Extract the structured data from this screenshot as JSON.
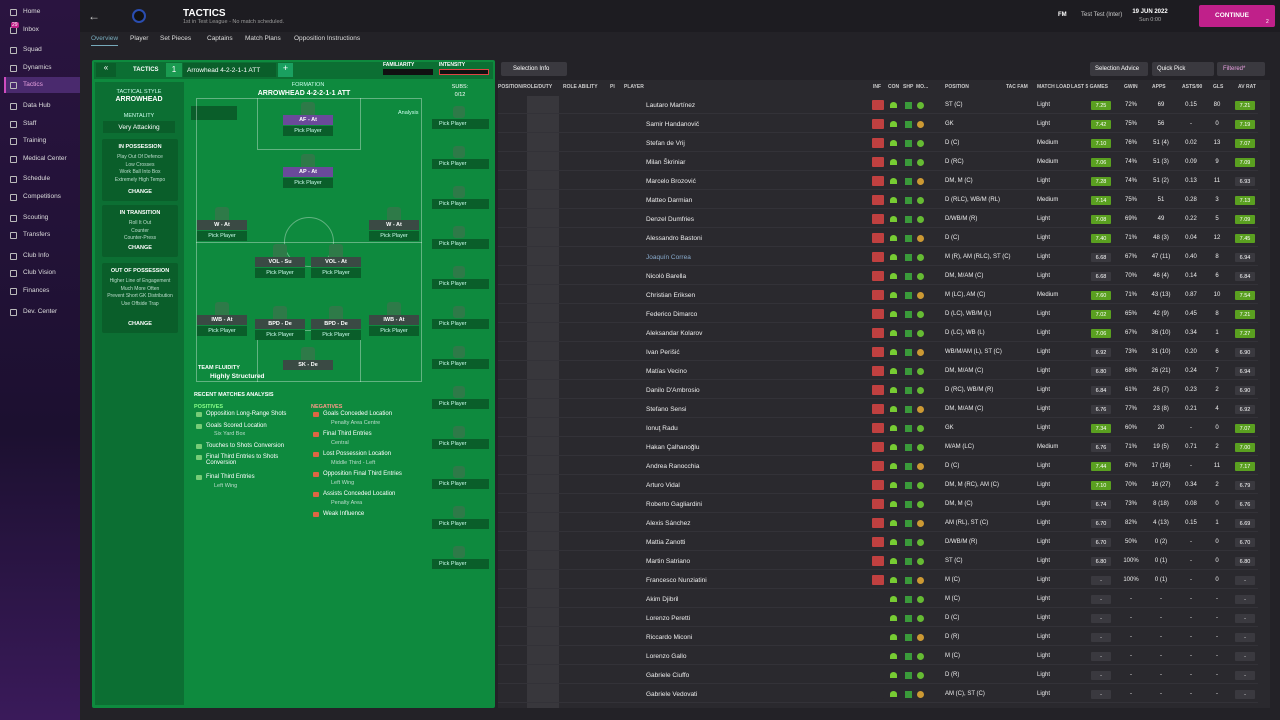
{
  "sidebar": {
    "items": [
      "Home",
      "Inbox",
      "Squad",
      "Dynamics",
      "Tactics",
      "Data Hub",
      "Staff",
      "Training",
      "Medical Center",
      "Schedule",
      "Competitions",
      "Scouting",
      "Transfers",
      "Club Info",
      "Club Vision",
      "Finances",
      "Dev. Center"
    ],
    "inbox_badge": "29"
  },
  "header": {
    "title": "TACTICS",
    "subtitle": "1st in Test League - No match scheduled.",
    "date": "19 JUN 2022",
    "time": "Sun 0:00",
    "manager_badge": "FM",
    "club": "Test Test (Inter)",
    "continue": "CONTINUE",
    "continue_count": "2"
  },
  "tabs": [
    "Overview",
    "Player",
    "Set Pieces",
    "Captains",
    "Match Plans",
    "Opposition Instructions"
  ],
  "tactic_bar": {
    "label": "TACTICS",
    "slot": "1",
    "name": "Arrowhead 4-2-2-1-1 ATT",
    "familiarity": "FAMILIARITY",
    "intensity": "INTENSITY"
  },
  "style_panel": {
    "label": "TACTICAL STYLE",
    "style": "ARROWHEAD",
    "mentality_label": "MENTALITY",
    "mentality": "Very Attacking",
    "change": "CHANGE",
    "sections": [
      {
        "title": "IN POSSESSION",
        "items": [
          "Play Out Of Defence",
          "Low Crosses",
          "Work Ball Into Box",
          "Extremely High Tempo"
        ]
      },
      {
        "title": "IN TRANSITION",
        "items": [
          "Roll It Out",
          "Counter",
          "Counter-Press"
        ]
      },
      {
        "title": "OUT OF POSSESSION",
        "items": [
          "Higher Line of Engagement",
          "Much More Often",
          "Prevent Short GK Distribution",
          "Use Offside Trap"
        ]
      }
    ]
  },
  "formation": {
    "label": "FORMATION",
    "name": "ARROWHEAD 4-2-2-1-1 ATT",
    "subs_label": "SUBS:",
    "subs": "0/12",
    "analysis": "Analysis",
    "pick": "Pick Player",
    "positions": [
      "AF - At",
      "AP - At",
      "W - At",
      "W - At",
      "VOL - Su",
      "VOL - At",
      "IWB - At",
      "BPD - De",
      "BPD - De",
      "IWB - At",
      "SK - De"
    ],
    "fluidity_label": "TEAM FLUIDITY",
    "fluidity": "Highly Structured"
  },
  "analysis": {
    "title": "RECENT MATCHES ANALYSIS",
    "positives_label": "POSITIVES",
    "negatives_label": "NEGATIVES",
    "positives": [
      {
        "text": "Opposition Long-Range Shots"
      },
      {
        "text": "Goals Scored Location",
        "detail": "Six Yard Box"
      },
      {
        "text": "Touches to Shots Conversion"
      },
      {
        "text": "Final Third Entries to Shots Conversion"
      },
      {
        "text": "Final Third Entries",
        "detail": "Left Wing"
      }
    ],
    "negatives": [
      {
        "text": "Goals Conceded Location",
        "detail": "Penalty Area Centre"
      },
      {
        "text": "Final Third Entries",
        "detail": "Central"
      },
      {
        "text": "Lost Possession Location",
        "detail": "Middle Third - Left"
      },
      {
        "text": "Opposition Final Third Entries",
        "detail": "Left Wing"
      },
      {
        "text": "Assists Conceded Location",
        "detail": "Penalty Area"
      },
      {
        "text": "Weak Influence"
      }
    ]
  },
  "squad": {
    "buttons": {
      "selection_info": "Selection Info",
      "selection_advice": "Selection Advice",
      "quick_pick": "Quick Pick",
      "filter": "Filtered*"
    },
    "columns": [
      "POSITION/ROLE/DUTY",
      "ROLE ABILITY",
      "PI",
      "PLAYER",
      "INF",
      "CON",
      "SHP",
      "MO...",
      "POSITION",
      "TAC FAM",
      "MATCH LOAD",
      "LAST 5 GAMES",
      "GWIN",
      "APPS",
      "ASTS/90",
      "GLS",
      "AV RAT"
    ],
    "rows": [
      [
        "Lautaro Martínez",
        "ST (C)",
        "Light",
        "7.25",
        "72%",
        "69",
        "0.15",
        "80",
        "7.21"
      ],
      [
        "Samir Handanovič",
        "GK",
        "Light",
        "7.42",
        "75%",
        "56",
        "-",
        "0",
        "7.19"
      ],
      [
        "Stefan de Vrij",
        "D (C)",
        "Medium",
        "7.10",
        "76%",
        "51 (4)",
        "0.02",
        "13",
        "7.07"
      ],
      [
        "Milan Škriniar",
        "D (RC)",
        "Medium",
        "7.06",
        "74%",
        "51 (3)",
        "0.09",
        "9",
        "7.09"
      ],
      [
        "Marcelo Brozović",
        "DM, M (C)",
        "Light",
        "7.28",
        "74%",
        "51 (2)",
        "0.13",
        "11",
        "6.93"
      ],
      [
        "Matteo Darmian",
        "D (RLC), WB/M (RL)",
        "Medium",
        "7.14",
        "75%",
        "51",
        "0.28",
        "3",
        "7.13"
      ],
      [
        "Denzel Dumfries",
        "D/WB/M (R)",
        "Light",
        "7.08",
        "69%",
        "49",
        "0.22",
        "5",
        "7.09"
      ],
      [
        "Alessandro Bastoni",
        "D (C)",
        "Light",
        "7.40",
        "71%",
        "48 (3)",
        "0.04",
        "12",
        "7.45"
      ],
      [
        "Joaquín Correa",
        "M (R), AM (RLC), ST (C)",
        "Light",
        "6.68",
        "67%",
        "47 (11)",
        "0.40",
        "8",
        "6.94"
      ],
      [
        "Nicolò Barella",
        "DM, M/AM (C)",
        "Light",
        "6.68",
        "70%",
        "46 (4)",
        "0.14",
        "6",
        "6.84"
      ],
      [
        "Christian Eriksen",
        "M (LC), AM (C)",
        "Medium",
        "7.60",
        "71%",
        "43 (13)",
        "0.87",
        "10",
        "7.54"
      ],
      [
        "Federico Dimarco",
        "D (LC), WB/M (L)",
        "Light",
        "7.02",
        "65%",
        "42 (9)",
        "0.45",
        "8",
        "7.21"
      ],
      [
        "Aleksandar Kolarov",
        "D (LC), WB (L)",
        "Light",
        "7.06",
        "67%",
        "36 (10)",
        "0.34",
        "1",
        "7.27"
      ],
      [
        "Ivan Perišić",
        "WB/M/AM (L), ST (C)",
        "Light",
        "6.92",
        "73%",
        "31 (10)",
        "0.20",
        "6",
        "6.90"
      ],
      [
        "Matías Vecino",
        "DM, M/AM (C)",
        "Light",
        "6.80",
        "68%",
        "26 (21)",
        "0.24",
        "7",
        "6.94"
      ],
      [
        "Danilo D'Ambrosio",
        "D (RC), WB/M (R)",
        "Light",
        "6.84",
        "61%",
        "26 (7)",
        "0.23",
        "2",
        "6.90"
      ],
      [
        "Stefano Sensi",
        "DM, M/AM (C)",
        "Light",
        "6.76",
        "77%",
        "23 (8)",
        "0.21",
        "4",
        "6.92"
      ],
      [
        "Ionuţ Radu",
        "GK",
        "Light",
        "7.34",
        "60%",
        "20",
        "-",
        "0",
        "7.07"
      ],
      [
        "Hakan Çalhanoğlu",
        "M/AM (LC)",
        "Medium",
        "6.76",
        "71%",
        "19 (5)",
        "0.71",
        "2",
        "7.00"
      ],
      [
        "Andrea Ranocchia",
        "D (C)",
        "Light",
        "7.44",
        "67%",
        "17 (16)",
        "-",
        "11",
        "7.17"
      ],
      [
        "Arturo Vidal",
        "DM, M (RC), AM (C)",
        "Light",
        "7.10",
        "70%",
        "16 (27)",
        "0.34",
        "2",
        "6.79"
      ],
      [
        "Roberto Gagliardini",
        "DM, M (C)",
        "Light",
        "6.74",
        "73%",
        "8 (18)",
        "0.08",
        "0",
        "6.76"
      ],
      [
        "Alexis Sánchez",
        "AM (RL), ST (C)",
        "Light",
        "6.70",
        "82%",
        "4 (13)",
        "0.15",
        "1",
        "6.69"
      ],
      [
        "Mattia Zanotti",
        "D/WB/M (R)",
        "Light",
        "6.70",
        "50%",
        "0 (2)",
        "-",
        "0",
        "6.70"
      ],
      [
        "Martin Satriano",
        "ST (C)",
        "Light",
        "6.80",
        "100%",
        "0 (1)",
        "-",
        "0",
        "6.80"
      ],
      [
        "Francesco Nunziatini",
        "M (C)",
        "Light",
        "-",
        "100%",
        "0 (1)",
        "-",
        "0",
        "-"
      ],
      [
        "Akim Djibril",
        "M (C)",
        "Light",
        "-",
        "-",
        "-",
        "-",
        "-",
        "-"
      ],
      [
        "Lorenzo Peretti",
        "D (C)",
        "Light",
        "-",
        "-",
        "-",
        "-",
        "-",
        "-"
      ],
      [
        "Riccardo Miconi",
        "D (R)",
        "Light",
        "-",
        "-",
        "-",
        "-",
        "-",
        "-"
      ],
      [
        "Lorenzo Gallo",
        "M (C)",
        "Light",
        "-",
        "-",
        "-",
        "-",
        "-",
        "-"
      ],
      [
        "Gabriele Ciuffo",
        "D (R)",
        "Light",
        "-",
        "-",
        "-",
        "-",
        "-",
        "-"
      ],
      [
        "Gabriele Vedovati",
        "AM (C), ST (C)",
        "Light",
        "-",
        "-",
        "-",
        "-",
        "-",
        "-"
      ]
    ]
  }
}
